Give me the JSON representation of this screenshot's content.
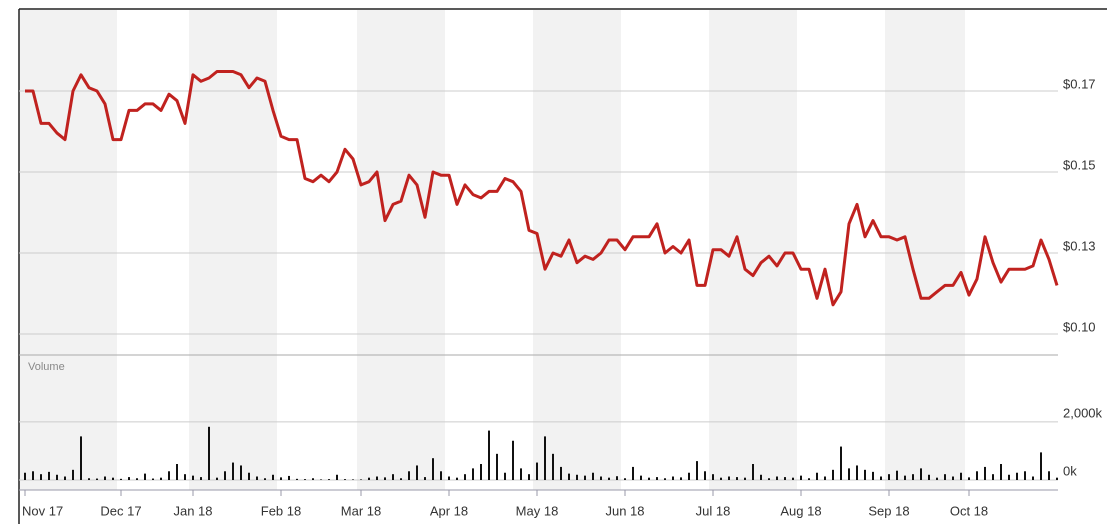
{
  "chart_data": [
    {
      "type": "line",
      "color": "#c0221f",
      "categories": [
        "Nov 17",
        null,
        null,
        null,
        null,
        null,
        null,
        null,
        null,
        null,
        null,
        null,
        "Dec 17",
        null,
        null,
        null,
        null,
        null,
        null,
        null,
        null,
        "Jan 18",
        null,
        null,
        null,
        null,
        null,
        null,
        null,
        null,
        null,
        null,
        "Feb 18",
        null,
        null,
        null,
        null,
        null,
        null,
        null,
        null,
        null,
        "Mar 18",
        null,
        null,
        null,
        null,
        null,
        null,
        null,
        null,
        null,
        null,
        "Apr 18",
        null,
        null,
        null,
        null,
        null,
        null,
        null,
        null,
        null,
        null,
        "May 18",
        null,
        null,
        null,
        null,
        null,
        null,
        null,
        null,
        null,
        null,
        "Jun 18",
        null,
        null,
        null,
        null,
        null,
        null,
        null,
        null,
        null,
        null,
        "Jul 18",
        null,
        null,
        null,
        null,
        null,
        null,
        null,
        null,
        null,
        null,
        "Aug 18",
        null,
        null,
        null,
        null,
        null,
        null,
        null,
        null,
        null,
        null,
        "Sep 18",
        null,
        null,
        null,
        null,
        null,
        null,
        null,
        null,
        null,
        "Oct 18",
        null,
        null,
        null,
        null,
        null,
        null,
        null,
        null,
        null,
        null,
        null
      ],
      "values": [
        0.175,
        0.175,
        0.165,
        0.165,
        0.162,
        0.16,
        0.175,
        0.18,
        0.176,
        0.175,
        0.171,
        0.16,
        0.16,
        0.169,
        0.169,
        0.171,
        0.171,
        0.169,
        0.174,
        0.172,
        0.165,
        0.18,
        0.178,
        0.179,
        0.181,
        0.181,
        0.181,
        0.18,
        0.176,
        0.179,
        0.178,
        0.169,
        0.161,
        0.16,
        0.16,
        0.148,
        0.147,
        0.149,
        0.147,
        0.15,
        0.157,
        0.154,
        0.146,
        0.147,
        0.15,
        0.135,
        0.14,
        0.141,
        0.149,
        0.146,
        0.136,
        0.15,
        0.149,
        0.149,
        0.14,
        0.146,
        0.143,
        0.142,
        0.144,
        0.144,
        0.148,
        0.147,
        0.144,
        0.132,
        0.131,
        0.12,
        0.125,
        0.124,
        0.129,
        0.122,
        0.124,
        0.123,
        0.125,
        0.129,
        0.129,
        0.126,
        0.13,
        0.13,
        0.13,
        0.134,
        0.125,
        0.127,
        0.125,
        0.129,
        0.115,
        0.115,
        0.126,
        0.126,
        0.124,
        0.13,
        0.12,
        0.118,
        0.122,
        0.124,
        0.121,
        0.125,
        0.125,
        0.12,
        0.12,
        0.111,
        0.12,
        0.109,
        0.113,
        0.134,
        0.14,
        0.13,
        0.135,
        0.13,
        0.13,
        0.129,
        0.13,
        0.12,
        0.111,
        0.111,
        0.113,
        0.115,
        0.115,
        0.119,
        0.112,
        0.117,
        0.13,
        0.122,
        0.116,
        0.12,
        0.12,
        0.12,
        0.121,
        0.129,
        0.123,
        0.115
      ],
      "ylim": [
        0.0935,
        0.2
      ],
      "yticks": [
        {
          "value": 0.1,
          "label": "$0.10"
        },
        {
          "value": 0.125,
          "label": "$0.13"
        },
        {
          "value": 0.15,
          "label": "$0.15"
        },
        {
          "value": 0.175,
          "label": "$0.17"
        }
      ]
    },
    {
      "type": "bar",
      "title": "Volume",
      "color": "#111111",
      "values": [
        250,
        300,
        200,
        280,
        180,
        120,
        350,
        1500,
        60,
        50,
        120,
        80,
        40,
        100,
        60,
        220,
        50,
        80,
        300,
        550,
        200,
        150,
        100,
        1830,
        80,
        300,
        600,
        500,
        250,
        120,
        60,
        180,
        90,
        140,
        40,
        30,
        60,
        20,
        30,
        180,
        30,
        20,
        20,
        80,
        120,
        90,
        200,
        60,
        300,
        500,
        100,
        750,
        300,
        120,
        80,
        200,
        400,
        550,
        1700,
        900,
        250,
        1350,
        400,
        200,
        600,
        1500,
        900,
        450,
        220,
        180,
        150,
        250,
        120,
        80,
        130,
        60,
        450,
        150,
        80,
        100,
        60,
        120,
        90,
        250,
        650,
        300,
        200,
        80,
        120,
        100,
        80,
        550,
        180,
        60,
        120,
        100,
        80,
        150,
        60,
        250,
        120,
        350,
        1150,
        400,
        500,
        350,
        280,
        120,
        200,
        320,
        150,
        200,
        400,
        180,
        80,
        200,
        120,
        250,
        90,
        300,
        450,
        200,
        550,
        180,
        250,
        300,
        120,
        950,
        300,
        80
      ],
      "ylim": [
        0,
        4300
      ],
      "yticks": [
        {
          "value": 0,
          "label": "0k"
        },
        {
          "value": 2000,
          "label": "2,000k"
        }
      ]
    }
  ]
}
